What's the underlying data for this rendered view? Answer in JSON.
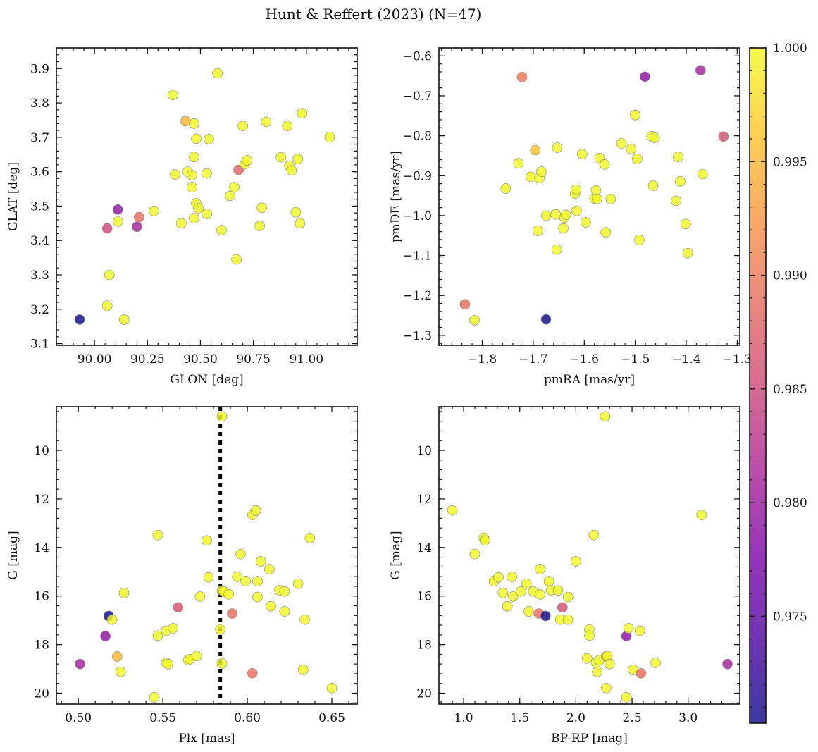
{
  "figure": {
    "title": "Hunt & Reffert (2023) (N=47)"
  },
  "colorbar": {
    "min": 0.9703,
    "max": 1.0,
    "ticks": [
      0.975,
      0.98,
      0.985,
      0.99,
      0.995,
      1.0
    ],
    "tick_labels": [
      "0.975",
      "0.980",
      "0.985",
      "0.990",
      "0.995",
      "1.000"
    ],
    "colormap": "plasma"
  },
  "style": {
    "marker_edge": "#888888",
    "vline_color": "#000000"
  },
  "chart_data": [
    {
      "type": "scatter",
      "id": "glon_glat",
      "xlabel": "GLON [deg]",
      "ylabel": "GLAT [deg]",
      "xlim": [
        89.82,
        91.24
      ],
      "ylim": [
        3.095,
        3.96
      ],
      "y_inverted": false,
      "xticks": [
        90.0,
        90.25,
        90.5,
        90.75,
        91.0
      ],
      "xtick_labels": [
        "90.00",
        "90.25",
        "90.50",
        "90.75",
        "91.00"
      ],
      "yticks": [
        3.1,
        3.2,
        3.3,
        3.4,
        3.5,
        3.6,
        3.7,
        3.8,
        3.9
      ],
      "ytick_labels": [
        "3.1",
        "3.2",
        "3.3",
        "3.4",
        "3.5",
        "3.6",
        "3.7",
        "3.8",
        "3.9"
      ],
      "vline": null,
      "points": [
        {
          "x": 89.93,
          "y": 3.17,
          "c": 0.9705
        },
        {
          "x": 90.06,
          "y": 3.21,
          "c": 1.0
        },
        {
          "x": 90.07,
          "y": 3.3,
          "c": 1.0
        },
        {
          "x": 90.14,
          "y": 3.17,
          "c": 1.0
        },
        {
          "x": 90.06,
          "y": 3.435,
          "c": 0.985
        },
        {
          "x": 90.11,
          "y": 3.455,
          "c": 1.0
        },
        {
          "x": 90.11,
          "y": 3.49,
          "c": 0.979
        },
        {
          "x": 90.2,
          "y": 3.44,
          "c": 0.981
        },
        {
          "x": 90.21,
          "y": 3.468,
          "c": 0.989
        },
        {
          "x": 90.28,
          "y": 3.486,
          "c": 1.0
        },
        {
          "x": 90.37,
          "y": 3.823,
          "c": 1.0
        },
        {
          "x": 90.38,
          "y": 3.592,
          "c": 1.0
        },
        {
          "x": 90.41,
          "y": 3.45,
          "c": 1.0
        },
        {
          "x": 90.43,
          "y": 3.747,
          "c": 0.995
        },
        {
          "x": 90.44,
          "y": 3.6,
          "c": 1.0
        },
        {
          "x": 90.46,
          "y": 3.59,
          "c": 1.0
        },
        {
          "x": 90.46,
          "y": 3.555,
          "c": 1.0
        },
        {
          "x": 90.47,
          "y": 3.74,
          "c": 1.0
        },
        {
          "x": 90.47,
          "y": 3.643,
          "c": 1.0
        },
        {
          "x": 90.47,
          "y": 3.465,
          "c": 1.0
        },
        {
          "x": 90.48,
          "y": 3.696,
          "c": 1.0
        },
        {
          "x": 90.48,
          "y": 3.508,
          "c": 1.0
        },
        {
          "x": 90.49,
          "y": 3.494,
          "c": 1.0
        },
        {
          "x": 90.53,
          "y": 3.595,
          "c": 1.0
        },
        {
          "x": 90.53,
          "y": 3.477,
          "c": 1.0
        },
        {
          "x": 90.54,
          "y": 3.695,
          "c": 1.0
        },
        {
          "x": 90.58,
          "y": 3.886,
          "c": 1.0
        },
        {
          "x": 90.6,
          "y": 3.43,
          "c": 1.0
        },
        {
          "x": 90.64,
          "y": 3.53,
          "c": 1.0
        },
        {
          "x": 90.66,
          "y": 3.555,
          "c": 1.0
        },
        {
          "x": 90.67,
          "y": 3.345,
          "c": 1.0
        },
        {
          "x": 90.68,
          "y": 3.605,
          "c": 0.988
        },
        {
          "x": 90.7,
          "y": 3.733,
          "c": 1.0
        },
        {
          "x": 90.71,
          "y": 3.622,
          "c": 1.0
        },
        {
          "x": 90.72,
          "y": 3.633,
          "c": 1.0
        },
        {
          "x": 90.78,
          "y": 3.442,
          "c": 1.0
        },
        {
          "x": 90.79,
          "y": 3.495,
          "c": 1.0
        },
        {
          "x": 90.81,
          "y": 3.745,
          "c": 1.0
        },
        {
          "x": 90.88,
          "y": 3.642,
          "c": 1.0
        },
        {
          "x": 90.91,
          "y": 3.733,
          "c": 1.0
        },
        {
          "x": 90.92,
          "y": 3.617,
          "c": 1.0
        },
        {
          "x": 90.93,
          "y": 3.604,
          "c": 1.0
        },
        {
          "x": 90.95,
          "y": 3.482,
          "c": 1.0
        },
        {
          "x": 90.96,
          "y": 3.637,
          "c": 1.0
        },
        {
          "x": 90.97,
          "y": 3.45,
          "c": 1.0
        },
        {
          "x": 90.98,
          "y": 3.77,
          "c": 1.0
        },
        {
          "x": 91.11,
          "y": 3.701,
          "c": 1.0
        }
      ]
    },
    {
      "type": "scatter",
      "id": "pmra_pmde",
      "xlabel": "pmRA [mas/yr]",
      "ylabel": "pmDE [mas/yr]",
      "xlim": [
        -1.885,
        -1.295
      ],
      "ylim": [
        -1.325,
        -0.58
      ],
      "y_inverted": false,
      "xticks": [
        -1.8,
        -1.7,
        -1.6,
        -1.5,
        -1.4,
        -1.3
      ],
      "xtick_labels": [
        "−1.8",
        "−1.7",
        "−1.6",
        "−1.5",
        "−1.4",
        "−1.3"
      ],
      "yticks": [
        -1.3,
        -1.2,
        -1.1,
        -1.0,
        -0.9,
        -0.8,
        -0.7,
        -0.6
      ],
      "ytick_labels": [
        "−1.3",
        "−1.2",
        "−1.1",
        "−1.0",
        "−0.9",
        "−0.8",
        "−0.7",
        "−0.6"
      ],
      "vline": null,
      "points": [
        {
          "x": -1.834,
          "y": -1.222,
          "c": 0.989
        },
        {
          "x": -1.815,
          "y": -1.262,
          "c": 1.0
        },
        {
          "x": -1.675,
          "y": -1.26,
          "c": 0.9705
        },
        {
          "x": -1.722,
          "y": -0.653,
          "c": 0.99
        },
        {
          "x": -1.481,
          "y": -0.652,
          "c": 0.979
        },
        {
          "x": -1.372,
          "y": -0.636,
          "c": 0.981
        },
        {
          "x": -1.327,
          "y": -0.802,
          "c": 0.986
        },
        {
          "x": -1.696,
          "y": -0.836,
          "c": 0.996
        },
        {
          "x": -1.754,
          "y": -0.932,
          "c": 1.0
        },
        {
          "x": -1.729,
          "y": -0.869,
          "c": 1.0
        },
        {
          "x": -1.705,
          "y": -0.903,
          "c": 1.0
        },
        {
          "x": -1.688,
          "y": -0.906,
          "c": 1.0
        },
        {
          "x": -1.684,
          "y": -0.89,
          "c": 1.0
        },
        {
          "x": -1.691,
          "y": -1.038,
          "c": 1.0
        },
        {
          "x": -1.675,
          "y": -1.0,
          "c": 1.0
        },
        {
          "x": -1.656,
          "y": -0.997,
          "c": 1.0
        },
        {
          "x": -1.653,
          "y": -0.83,
          "c": 1.0
        },
        {
          "x": -1.654,
          "y": -1.085,
          "c": 1.0
        },
        {
          "x": -1.641,
          "y": -1.032,
          "c": 1.0
        },
        {
          "x": -1.639,
          "y": -1.005,
          "c": 1.0
        },
        {
          "x": -1.636,
          "y": -0.998,
          "c": 1.0
        },
        {
          "x": -1.618,
          "y": -0.945,
          "c": 1.0
        },
        {
          "x": -1.616,
          "y": -0.935,
          "c": 1.0
        },
        {
          "x": -1.615,
          "y": -0.988,
          "c": 1.0
        },
        {
          "x": -1.604,
          "y": -0.846,
          "c": 1.0
        },
        {
          "x": -1.597,
          "y": -1.017,
          "c": 1.0
        },
        {
          "x": -1.58,
          "y": -0.957,
          "c": 1.0
        },
        {
          "x": -1.577,
          "y": -0.937,
          "c": 1.0
        },
        {
          "x": -1.575,
          "y": -0.958,
          "c": 1.0
        },
        {
          "x": -1.57,
          "y": -0.856,
          "c": 1.0
        },
        {
          "x": -1.56,
          "y": -0.872,
          "c": 1.0
        },
        {
          "x": -1.558,
          "y": -1.042,
          "c": 1.0
        },
        {
          "x": -1.548,
          "y": -0.958,
          "c": 1.0
        },
        {
          "x": -1.527,
          "y": -0.819,
          "c": 1.0
        },
        {
          "x": -1.508,
          "y": -0.833,
          "c": 1.0
        },
        {
          "x": -1.5,
          "y": -0.748,
          "c": 1.0
        },
        {
          "x": -1.496,
          "y": -0.858,
          "c": 1.0
        },
        {
          "x": -1.492,
          "y": -1.061,
          "c": 1.0
        },
        {
          "x": -1.468,
          "y": -0.801,
          "c": 1.0
        },
        {
          "x": -1.462,
          "y": -0.805,
          "c": 1.0
        },
        {
          "x": -1.465,
          "y": -0.925,
          "c": 1.0
        },
        {
          "x": -1.42,
          "y": -0.963,
          "c": 1.0
        },
        {
          "x": -1.416,
          "y": -0.853,
          "c": 1.0
        },
        {
          "x": -1.412,
          "y": -0.914,
          "c": 1.0
        },
        {
          "x": -1.401,
          "y": -1.021,
          "c": 1.0
        },
        {
          "x": -1.397,
          "y": -1.094,
          "c": 1.0
        },
        {
          "x": -1.368,
          "y": -0.896,
          "c": 1.0
        }
      ]
    },
    {
      "type": "scatter",
      "id": "plx_g",
      "xlabel": "Plx [mas]",
      "ylabel": "G [mag]",
      "xlim": [
        0.487,
        0.665
      ],
      "ylim": [
        8.2,
        20.45
      ],
      "y_inverted": true,
      "xticks": [
        0.5,
        0.55,
        0.6,
        0.65
      ],
      "xtick_labels": [
        "0.50",
        "0.55",
        "0.60",
        "0.65"
      ],
      "yticks": [
        10,
        12,
        14,
        16,
        18,
        20
      ],
      "ytick_labels": [
        "10",
        "12",
        "14",
        "16",
        "18",
        "20"
      ],
      "vline": 0.584,
      "points": [
        {
          "x": 0.501,
          "y": 18.8,
          "c": 0.981
        },
        {
          "x": 0.516,
          "y": 17.65,
          "c": 0.979
        },
        {
          "x": 0.518,
          "y": 16.82,
          "c": 0.9705
        },
        {
          "x": 0.52,
          "y": 16.97,
          "c": 1.0
        },
        {
          "x": 0.523,
          "y": 18.49,
          "c": 0.995
        },
        {
          "x": 0.525,
          "y": 19.12,
          "c": 1.0
        },
        {
          "x": 0.527,
          "y": 15.87,
          "c": 1.0
        },
        {
          "x": 0.545,
          "y": 20.17,
          "c": 1.0
        },
        {
          "x": 0.547,
          "y": 13.49,
          "c": 1.0
        },
        {
          "x": 0.547,
          "y": 17.63,
          "c": 1.0
        },
        {
          "x": 0.552,
          "y": 18.75,
          "c": 1.0
        },
        {
          "x": 0.552,
          "y": 17.43,
          "c": 1.0
        },
        {
          "x": 0.553,
          "y": 18.8,
          "c": 1.0
        },
        {
          "x": 0.556,
          "y": 17.33,
          "c": 1.0
        },
        {
          "x": 0.559,
          "y": 16.47,
          "c": 0.986
        },
        {
          "x": 0.565,
          "y": 18.64,
          "c": 1.0
        },
        {
          "x": 0.566,
          "y": 18.6,
          "c": 1.0
        },
        {
          "x": 0.57,
          "y": 18.47,
          "c": 1.0
        },
        {
          "x": 0.572,
          "y": 16.02,
          "c": 1.0
        },
        {
          "x": 0.576,
          "y": 13.71,
          "c": 1.0
        },
        {
          "x": 0.577,
          "y": 15.23,
          "c": 1.0
        },
        {
          "x": 0.584,
          "y": 17.38,
          "c": 1.0
        },
        {
          "x": 0.585,
          "y": 8.6,
          "c": 1.0
        },
        {
          "x": 0.585,
          "y": 15.77,
          "c": 1.0
        },
        {
          "x": 0.585,
          "y": 18.78,
          "c": 1.0
        },
        {
          "x": 0.586,
          "y": 15.81,
          "c": 1.0
        },
        {
          "x": 0.589,
          "y": 15.93,
          "c": 1.0
        },
        {
          "x": 0.591,
          "y": 16.72,
          "c": 0.989
        },
        {
          "x": 0.594,
          "y": 15.21,
          "c": 1.0
        },
        {
          "x": 0.596,
          "y": 14.27,
          "c": 1.0
        },
        {
          "x": 0.599,
          "y": 15.38,
          "c": 1.0
        },
        {
          "x": 0.603,
          "y": 12.66,
          "c": 1.0
        },
        {
          "x": 0.603,
          "y": 19.18,
          "c": 0.989
        },
        {
          "x": 0.605,
          "y": 12.48,
          "c": 1.0
        },
        {
          "x": 0.606,
          "y": 15.39,
          "c": 1.0
        },
        {
          "x": 0.606,
          "y": 16.04,
          "c": 1.0
        },
        {
          "x": 0.608,
          "y": 14.57,
          "c": 1.0
        },
        {
          "x": 0.613,
          "y": 14.89,
          "c": 1.0
        },
        {
          "x": 0.614,
          "y": 16.42,
          "c": 1.0
        },
        {
          "x": 0.619,
          "y": 15.76,
          "c": 1.0
        },
        {
          "x": 0.622,
          "y": 16.63,
          "c": 1.0
        },
        {
          "x": 0.622,
          "y": 15.81,
          "c": 1.0
        },
        {
          "x": 0.63,
          "y": 15.49,
          "c": 1.0
        },
        {
          "x": 0.633,
          "y": 19.04,
          "c": 1.0
        },
        {
          "x": 0.634,
          "y": 16.97,
          "c": 1.0
        },
        {
          "x": 0.637,
          "y": 13.61,
          "c": 1.0
        },
        {
          "x": 0.65,
          "y": 19.79,
          "c": 1.0
        }
      ]
    },
    {
      "type": "scatter",
      "id": "bprp_g",
      "xlabel": "BP-RP [mag]",
      "ylabel": "G [mag]",
      "xlim": [
        0.78,
        3.46
      ],
      "ylim": [
        8.2,
        20.45
      ],
      "y_inverted": true,
      "xticks": [
        1.0,
        1.5,
        2.0,
        2.5,
        3.0
      ],
      "xtick_labels": [
        "1.0",
        "1.5",
        "2.0",
        "2.5",
        "3.0"
      ],
      "yticks": [
        10,
        12,
        14,
        16,
        18,
        20
      ],
      "ytick_labels": [
        "10",
        "12",
        "14",
        "16",
        "18",
        "20"
      ],
      "vline": null,
      "points": [
        {
          "x": 0.9,
          "y": 12.47,
          "c": 1.0
        },
        {
          "x": 1.1,
          "y": 14.27,
          "c": 1.0
        },
        {
          "x": 1.18,
          "y": 13.6,
          "c": 1.0
        },
        {
          "x": 1.19,
          "y": 13.71,
          "c": 1.0
        },
        {
          "x": 1.27,
          "y": 15.38,
          "c": 1.0
        },
        {
          "x": 1.31,
          "y": 15.23,
          "c": 1.0
        },
        {
          "x": 1.35,
          "y": 15.87,
          "c": 1.0
        },
        {
          "x": 1.39,
          "y": 16.42,
          "c": 1.0
        },
        {
          "x": 1.43,
          "y": 15.21,
          "c": 1.0
        },
        {
          "x": 1.44,
          "y": 16.02,
          "c": 1.0
        },
        {
          "x": 1.51,
          "y": 15.81,
          "c": 1.0
        },
        {
          "x": 1.56,
          "y": 15.49,
          "c": 1.0
        },
        {
          "x": 1.58,
          "y": 16.63,
          "c": 1.0
        },
        {
          "x": 1.62,
          "y": 15.81,
          "c": 1.0
        },
        {
          "x": 1.67,
          "y": 16.72,
          "c": 0.989
        },
        {
          "x": 1.68,
          "y": 14.89,
          "c": 1.0
        },
        {
          "x": 1.68,
          "y": 15.93,
          "c": 1.0
        },
        {
          "x": 1.73,
          "y": 16.82,
          "c": 0.9705
        },
        {
          "x": 1.76,
          "y": 15.39,
          "c": 1.0
        },
        {
          "x": 1.78,
          "y": 15.76,
          "c": 1.0
        },
        {
          "x": 1.84,
          "y": 15.77,
          "c": 1.0
        },
        {
          "x": 1.86,
          "y": 16.97,
          "c": 1.0
        },
        {
          "x": 1.88,
          "y": 16.47,
          "c": 0.986
        },
        {
          "x": 1.93,
          "y": 16.04,
          "c": 1.0
        },
        {
          "x": 1.93,
          "y": 16.97,
          "c": 1.0
        },
        {
          "x": 2.0,
          "y": 14.57,
          "c": 1.0
        },
        {
          "x": 2.1,
          "y": 18.57,
          "c": 1.0
        },
        {
          "x": 2.12,
          "y": 17.38,
          "c": 1.0
        },
        {
          "x": 2.12,
          "y": 17.63,
          "c": 1.0
        },
        {
          "x": 2.16,
          "y": 13.49,
          "c": 1.0
        },
        {
          "x": 2.18,
          "y": 18.75,
          "c": 1.0
        },
        {
          "x": 2.19,
          "y": 19.12,
          "c": 1.0
        },
        {
          "x": 2.21,
          "y": 18.64,
          "c": 1.0
        },
        {
          "x": 2.26,
          "y": 8.6,
          "c": 1.0
        },
        {
          "x": 2.27,
          "y": 18.49,
          "c": 0.995
        },
        {
          "x": 2.28,
          "y": 18.47,
          "c": 1.0
        },
        {
          "x": 2.27,
          "y": 19.79,
          "c": 1.0
        },
        {
          "x": 2.3,
          "y": 18.8,
          "c": 1.0
        },
        {
          "x": 2.45,
          "y": 17.65,
          "c": 0.979
        },
        {
          "x": 2.45,
          "y": 20.17,
          "c": 1.0
        },
        {
          "x": 2.47,
          "y": 17.33,
          "c": 1.0
        },
        {
          "x": 2.51,
          "y": 19.04,
          "c": 1.0
        },
        {
          "x": 2.57,
          "y": 17.43,
          "c": 1.0
        },
        {
          "x": 2.58,
          "y": 19.18,
          "c": 0.989
        },
        {
          "x": 2.71,
          "y": 18.75,
          "c": 1.0
        },
        {
          "x": 3.12,
          "y": 12.66,
          "c": 1.0
        },
        {
          "x": 3.35,
          "y": 18.8,
          "c": 0.981
        }
      ]
    }
  ]
}
